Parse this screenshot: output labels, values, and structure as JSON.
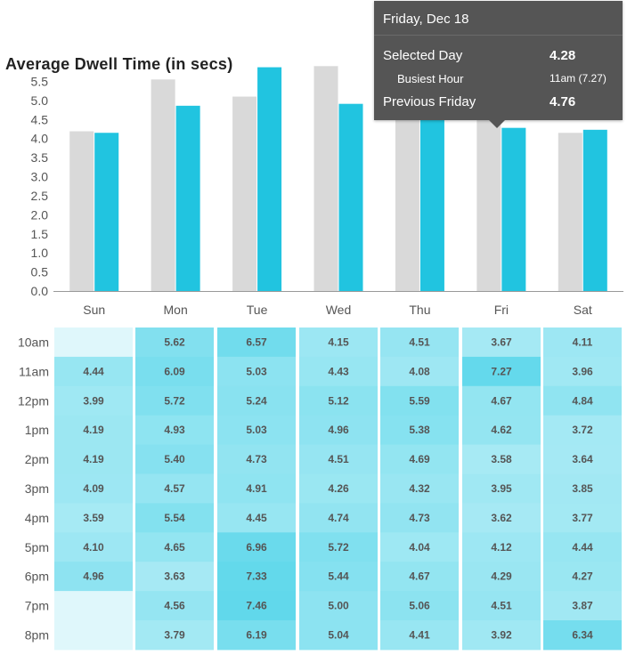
{
  "chart_data": [
    {
      "type": "bar",
      "title": "Average Dwell Time (in secs)",
      "categories": [
        "Sun",
        "Mon",
        "Tue",
        "Wed",
        "Thu",
        "Fri",
        "Sat"
      ],
      "yticks": [
        "0.0",
        "0.5",
        "1.0",
        "1.5",
        "2.0",
        "2.5",
        "3.0",
        "3.5",
        "4.0",
        "4.5",
        "5.0",
        "5.5"
      ],
      "ylim": [
        0,
        6.0
      ],
      "series": [
        {
          "values": [
            4.19,
            5.55,
            5.1,
            5.9,
            5.7,
            4.76,
            4.15
          ],
          "color": "#d9d9d9"
        },
        {
          "values": [
            4.15,
            4.86,
            5.87,
            4.91,
            4.67,
            4.28,
            4.23
          ],
          "color": "#21c4e0"
        }
      ]
    },
    {
      "type": "heatmap",
      "columns": [
        "Sun",
        "Mon",
        "Tue",
        "Wed",
        "Thu",
        "Fri",
        "Sat"
      ],
      "rows": [
        "10am",
        "11am",
        "12pm",
        "1pm",
        "2pm",
        "3pm",
        "4pm",
        "5pm",
        "6pm",
        "7pm",
        "8pm"
      ],
      "values": [
        [
          null,
          5.62,
          6.57,
          4.15,
          4.51,
          3.67,
          4.11
        ],
        [
          4.44,
          6.09,
          5.03,
          4.43,
          4.08,
          7.27,
          3.96
        ],
        [
          3.99,
          5.72,
          5.24,
          5.12,
          5.59,
          4.67,
          4.84
        ],
        [
          4.19,
          4.93,
          5.03,
          4.96,
          5.38,
          4.62,
          3.72
        ],
        [
          4.19,
          5.4,
          4.73,
          4.51,
          4.69,
          3.58,
          3.64
        ],
        [
          4.09,
          4.57,
          4.91,
          4.26,
          4.32,
          3.95,
          3.85
        ],
        [
          3.59,
          5.54,
          4.45,
          4.74,
          4.73,
          3.62,
          3.77
        ],
        [
          4.1,
          4.65,
          6.96,
          5.72,
          4.04,
          4.12,
          4.44
        ],
        [
          4.96,
          3.63,
          7.33,
          5.44,
          4.67,
          4.29,
          4.27
        ],
        [
          null,
          4.56,
          7.46,
          5.0,
          5.06,
          4.51,
          3.87
        ],
        [
          null,
          3.79,
          6.19,
          5.04,
          4.41,
          3.92,
          6.34
        ]
      ],
      "labels": [
        [
          "",
          "5.62",
          "6.57",
          "4.15",
          "4.51",
          "3.67",
          "4.11"
        ],
        [
          "4.44",
          "6.09",
          "5.03",
          "4.43",
          "4.08",
          "7.27",
          "3.96"
        ],
        [
          "3.99",
          "5.72",
          "5.24",
          "5.12",
          "5.59",
          "4.67",
          "4.84"
        ],
        [
          "4.19",
          "4.93",
          "5.03",
          "4.96",
          "5.38",
          "4.62",
          "3.72"
        ],
        [
          "4.19",
          "5.40",
          "4.73",
          "4.51",
          "4.69",
          "3.58",
          "3.64"
        ],
        [
          "4.09",
          "4.57",
          "4.91",
          "4.26",
          "4.32",
          "3.95",
          "3.85"
        ],
        [
          "3.59",
          "5.54",
          "4.45",
          "4.74",
          "4.73",
          "3.62",
          "3.77"
        ],
        [
          "4.10",
          "4.65",
          "6.96",
          "5.72",
          "4.04",
          "4.12",
          "4.44"
        ],
        [
          "4.96",
          "3.63",
          "7.33",
          "5.44",
          "4.67",
          "4.29",
          "4.27"
        ],
        [
          "",
          "4.56",
          "7.46",
          "5.00",
          "5.06",
          "4.51",
          "3.87"
        ],
        [
          "",
          "3.79",
          "6.19",
          "5.04",
          "4.41",
          "3.92",
          "6.34"
        ]
      ],
      "empty_color": "#dff7fb"
    }
  ],
  "tooltip": {
    "title": "Friday, Dec 18",
    "selected_day_label": "Selected Day",
    "selected_day_value": "4.28",
    "busiest_hour_label": "Busiest Hour",
    "busiest_hour_value": "11am (7.27)",
    "previous_label": "Previous Friday",
    "previous_value": "4.76"
  }
}
